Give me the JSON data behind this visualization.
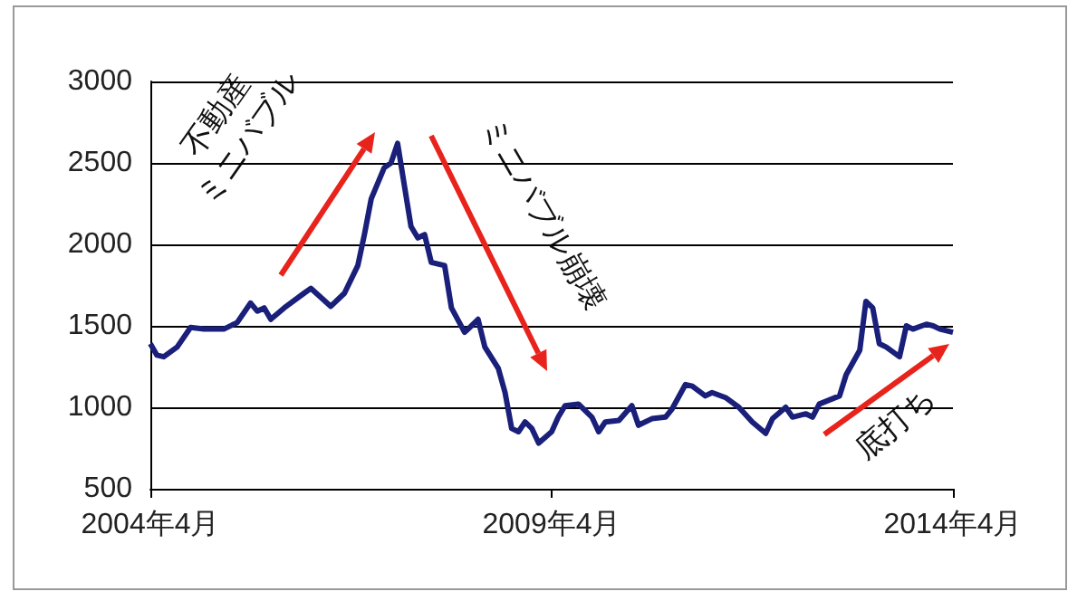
{
  "chart_data": {
    "type": "line",
    "color": "#1a1f7a",
    "x": [
      "2004-04",
      "2004-05",
      "2004-06",
      "2004-08",
      "2004-10",
      "2004-12",
      "2005-03",
      "2005-05",
      "2005-07",
      "2005-08",
      "2005-09",
      "2005-10",
      "2005-12",
      "2006-03",
      "2006-04",
      "2006-07",
      "2006-09",
      "2006-11",
      "2006-12",
      "2007-01",
      "2007-03",
      "2007-04",
      "2007-05",
      "2007-06",
      "2007-07",
      "2007-08",
      "2007-09",
      "2007-10",
      "2007-12",
      "2008-01",
      "2008-03",
      "2008-04",
      "2008-05",
      "2008-06",
      "2008-08",
      "2008-09",
      "2008-10",
      "2008-11",
      "2008-12",
      "2009-01",
      "2009-02",
      "2009-04",
      "2009-05",
      "2009-06",
      "2009-08",
      "2009-10",
      "2009-11",
      "2009-12",
      "2010-02",
      "2010-04",
      "2010-05",
      "2010-07",
      "2010-09",
      "2010-10",
      "2010-12",
      "2011-01",
      "2011-03",
      "2011-04",
      "2011-06",
      "2011-08",
      "2011-10",
      "2011-12",
      "2012-01",
      "2012-03",
      "2012-04",
      "2012-06",
      "2012-07",
      "2012-08",
      "2012-11",
      "2012-12",
      "2013-02",
      "2013-03",
      "2013-04",
      "2013-05",
      "2013-06",
      "2013-08",
      "2013-09",
      "2013-10",
      "2013-12",
      "2014-01",
      "2014-02",
      "2014-04"
    ],
    "values": [
      1390,
      1320,
      1310,
      1370,
      1490,
      1480,
      1480,
      1520,
      1640,
      1590,
      1610,
      1540,
      1610,
      1700,
      1730,
      1620,
      1700,
      1870,
      2060,
      2280,
      2470,
      2500,
      2620,
      2360,
      2110,
      2040,
      2060,
      1890,
      1870,
      1610,
      1460,
      1500,
      1540,
      1370,
      1240,
      1090,
      870,
      850,
      910,
      870,
      780,
      850,
      940,
      1010,
      1020,
      940,
      850,
      910,
      920,
      1010,
      890,
      930,
      940,
      990,
      1140,
      1130,
      1070,
      1090,
      1060,
      1000,
      910,
      840,
      930,
      1000,
      940,
      960,
      940,
      1020,
      1070,
      1200,
      1350,
      1650,
      1610,
      1390,
      1370,
      1310,
      1500,
      1480,
      1510,
      1500,
      1480,
      1460
    ],
    "xlim": [
      "2004-04",
      "2014-04"
    ],
    "xticks": [
      {
        "value": "2004-04",
        "label": "2004年4月"
      },
      {
        "value": "2009-04",
        "label": "2009年4月"
      },
      {
        "value": "2014-04",
        "label": "2014年4月"
      }
    ],
    "ylim": [
      500,
      3000
    ],
    "yticks": [
      500,
      1000,
      1500,
      2000,
      2500,
      3000
    ],
    "grid": "y",
    "marker": "none",
    "line_style": "solid",
    "annotations": [
      "不動産\nミニバブル",
      "ミニバブル崩壊",
      "底打ち"
    ]
  }
}
